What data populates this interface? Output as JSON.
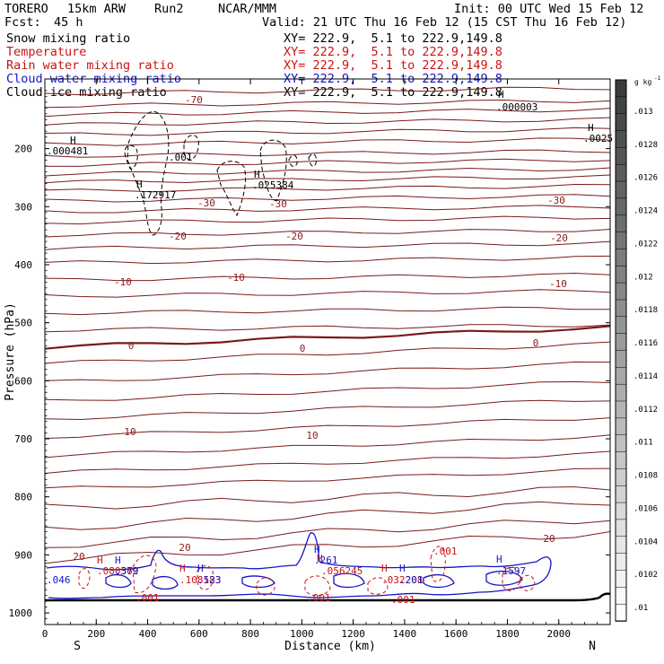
{
  "header": {
    "model": "TORERO",
    "resolution": "15km ARW",
    "run": "Run2",
    "org": "NCAR/MMM",
    "init": "Init: 00 UTC Wed 15 Feb 12",
    "fcst_label": "Fcst:",
    "fcst_value": "45 h",
    "valid": "Valid: 21 UTC Thu 16 Feb 12 (15 CST Thu 16 Feb 12)"
  },
  "fields": [
    {
      "name": "Snow mixing ratio",
      "xy": "XY= 222.9,  5.1 to 222.9,149.8",
      "color": "#000000"
    },
    {
      "name": "Temperature",
      "xy": "XY= 222.9,  5.1 to 222.9,149.8",
      "color": "#c81414"
    },
    {
      "name": "Rain water mixing ratio",
      "xy": "XY= 222.9,  5.1 to 222.9,149.8",
      "color": "#c81414"
    },
    {
      "name": "Cloud water mixing ratio",
      "xy": "XY= 222.9,  5.1 to 222.9,149.8",
      "color": "#1414c8"
    },
    {
      "name": "Cloud ice mixing ratio",
      "xy": "XY= 222.9,  5.1 to 222.9,149.8",
      "color": "#000000"
    }
  ],
  "chart_data": {
    "type": "line",
    "xlabel": "Distance (km)",
    "ylabel": "Pressure (hPa)",
    "xlim": [
      0,
      2200
    ],
    "ylim": [
      1020,
      80
    ],
    "x_ticks": [
      "0",
      "200",
      "400",
      "600",
      "800",
      "1000",
      "1200",
      "1400",
      "1600",
      "1800",
      "2000"
    ],
    "y_ticks": [
      "200",
      "300",
      "400",
      "500",
      "600",
      "700",
      "800",
      "900",
      "1000"
    ],
    "x_end_labels": {
      "left": "S",
      "right": "N"
    },
    "temperature_isotherms": {
      "interval": 2,
      "line_color": "#7a1a1a",
      "labels": [
        "-70",
        "-30",
        "-30",
        "-30",
        "-20",
        "-20",
        "-20",
        "-10",
        "-10",
        "-10",
        "0",
        "0",
        "0",
        "10",
        "10",
        "20",
        "20",
        "20"
      ]
    },
    "extrema_labels": [
      {
        "field": "Snow mixing ratio",
        "marker": "H",
        "value": ".000481",
        "color": "#000000"
      },
      {
        "field": "Snow mixing ratio",
        "marker": "H",
        "value": ".172917",
        "color": "#000000"
      },
      {
        "field": "Snow mixing ratio",
        "marker": "H",
        "value": ".025384",
        "color": "#000000"
      },
      {
        "field": "Cloud ice mixing ratio",
        "marker": "H",
        "value": ".000003",
        "color": "#000000"
      },
      {
        "field": "Cloud ice mixing ratio",
        "marker": "H",
        "value": ".0025",
        "color": "#000000"
      },
      {
        "field": "Rain water mixing ratio",
        "marker": "H",
        "value": ".080562",
        "color": "#c81414"
      },
      {
        "field": "Rain water mixing ratio",
        "marker": "H",
        "value": ".108183",
        "color": "#c81414"
      },
      {
        "field": "Rain water mixing ratio",
        "marker": "H",
        "value": ".056245",
        "color": "#c81414"
      },
      {
        "field": "Rain water mixing ratio",
        "marker": "H",
        "value": ".032208",
        "color": "#c81414"
      },
      {
        "field": "Cloud water mixing ratio",
        "marker": "H",
        "value": ".379",
        "color": "#1414c8"
      },
      {
        "field": "Cloud water mixing ratio",
        "marker": "H",
        "value": ".523",
        "color": "#1414c8"
      },
      {
        "field": "Cloud water mixing ratio",
        "marker": "H",
        "value": ".261",
        "color": "#1414c8"
      },
      {
        "field": "Cloud water mixing ratio",
        "marker": "H",
        "value": ".201",
        "color": "#1414c8"
      },
      {
        "field": "Cloud water mixing ratio",
        "marker": "H",
        "value": ".1597",
        "color": "#1414c8"
      },
      {
        "field": "Cloud water mixing ratio",
        "marker": "",
        "value": ".046",
        "color": "#1414c8"
      }
    ],
    "small_contour_labels": [
      ".001",
      ".001",
      ".001",
      ".001",
      ".001"
    ],
    "colorbar": {
      "unit": "g kg",
      "unit_exponent": "-1",
      "tick_labels": [
        ".013",
        ".0128",
        ".0126",
        ".0124",
        ".0122",
        ".012",
        ".0118",
        ".0116",
        ".0114",
        ".0112",
        ".011",
        ".0108",
        ".0106",
        ".0104",
        ".0102",
        ".01"
      ]
    }
  }
}
